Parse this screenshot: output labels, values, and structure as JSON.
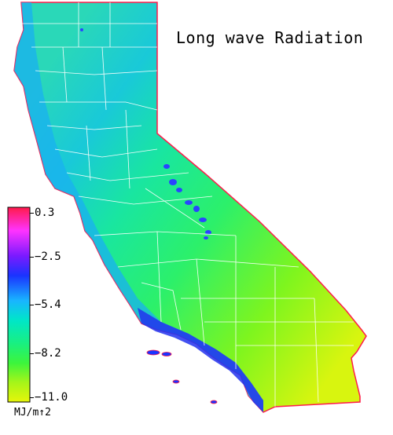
{
  "map": {
    "title": "Long wave Radiation",
    "region": "California",
    "legend": {
      "ticks": [
        "0.3",
        "−2.5",
        "−5.4",
        "−8.2",
        "−11.0"
      ],
      "units": "MJ/m↑2",
      "colors": [
        "#ff1a4a",
        "#ff33ff",
        "#7a1aff",
        "#1a33ff",
        "#19b5ff",
        "#00e6c8",
        "#19f080",
        "#3cf53c",
        "#a6f519",
        "#e6f50a"
      ]
    }
  }
}
